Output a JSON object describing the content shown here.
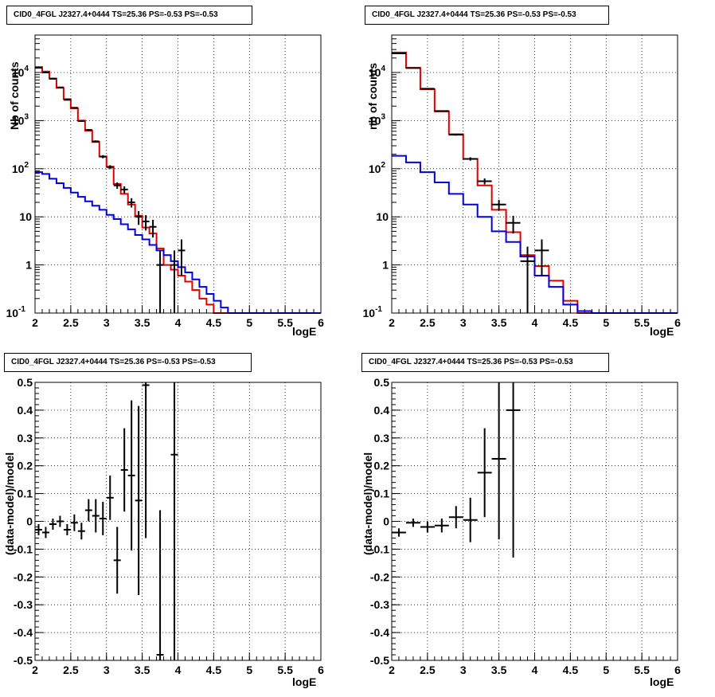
{
  "chart_data": [
    {
      "type": "line",
      "title": "CID0_4FGL J2327.4+0444 TS=25.36 PS=-0.53 PS=-0.53",
      "xlabel": "logE",
      "ylabel": "Nb of counts",
      "yscale": "log",
      "xlim": [
        2,
        6
      ],
      "ylim": [
        0.1,
        60000
      ],
      "grid": true,
      "x_ticks": [
        "2",
        "2.5",
        "3",
        "3.5",
        "4",
        "4.5",
        "5",
        "5.5",
        "6"
      ],
      "y_ticks": [
        "10^-1",
        "1",
        "10",
        "10^2",
        "10^3",
        "10^4"
      ],
      "bin_edges": [
        2.0,
        2.1,
        2.2,
        2.3,
        2.4,
        2.5,
        2.6,
        2.7,
        2.8,
        2.9,
        3.0,
        3.1,
        3.2,
        3.3,
        3.4,
        3.5,
        3.6,
        3.7,
        3.8,
        3.9,
        4.0,
        4.1,
        4.2,
        4.3,
        4.4,
        4.5,
        4.6,
        4.7,
        4.8,
        4.9,
        5.0,
        5.1,
        5.2,
        5.3,
        5.4,
        5.5,
        5.6,
        5.7,
        5.8,
        5.9,
        6.0
      ],
      "series": [
        {
          "color": "#e00000",
          "values": [
            13000,
            10500,
            7500,
            4800,
            2800,
            1800,
            1000,
            620,
            360,
            180,
            110,
            48,
            30,
            18,
            10.5,
            6,
            4.5,
            2.2,
            1,
            0.8,
            0.6,
            0.45,
            0.3,
            0.2,
            0.15,
            0.1,
            0.1,
            0.1,
            0.1,
            0.1,
            0.1,
            0.1,
            0.1,
            0.1,
            0.1,
            0.1,
            0.1,
            0.1,
            0.1,
            0.1
          ]
        },
        {
          "color": "#0000e0",
          "values": [
            85,
            78,
            62,
            50,
            40,
            32,
            26,
            21,
            17,
            14,
            11,
            9,
            7,
            5.5,
            4.2,
            3.4,
            2.6,
            2,
            1.6,
            1.2,
            0.9,
            0.7,
            0.5,
            0.35,
            0.25,
            0.18,
            0.13,
            0.1,
            0.1,
            0.1,
            0.1,
            0.1,
            0.1,
            0.1,
            0.1,
            0.1,
            0.1,
            0.1,
            0.1,
            0.1
          ]
        },
        {
          "color": "#000000",
          "type": "errorbar",
          "x": [
            2.05,
            2.15,
            2.25,
            2.35,
            2.45,
            2.55,
            2.65,
            2.75,
            2.85,
            2.95,
            3.05,
            3.15,
            3.25,
            3.35,
            3.45,
            3.55,
            3.65,
            3.75,
            3.95,
            4.05
          ],
          "y": [
            12500,
            10000,
            7400,
            4900,
            2700,
            1850,
            980,
            640,
            370,
            178,
            108,
            45,
            37,
            20,
            10,
            8,
            6.2,
            1,
            1,
            2
          ],
          "yerr_rel": [
            0.01,
            0.01,
            0.012,
            0.015,
            0.02,
            0.025,
            0.032,
            0.04,
            0.05,
            0.075,
            0.095,
            0.15,
            0.16,
            0.22,
            0.32,
            0.35,
            0.4,
            1,
            1,
            0.7
          ]
        }
      ]
    },
    {
      "type": "line",
      "title": "CID0_4FGL J2327.4+0444 TS=25.36 PS=-0.53 PS=-0.53",
      "xlabel": "logE",
      "ylabel": "nb of counts",
      "yscale": "log",
      "xlim": [
        2,
        6
      ],
      "ylim": [
        0.1,
        60000
      ],
      "grid": true,
      "x_ticks": [
        "2",
        "2.5",
        "3",
        "3.5",
        "4",
        "4.5",
        "5",
        "5.5",
        "6"
      ],
      "y_ticks": [
        "10^-1",
        "1",
        "10",
        "10^2",
        "10^3",
        "10^4"
      ],
      "bin_edges": [
        2.0,
        2.2,
        2.4,
        2.6,
        2.8,
        3.0,
        3.2,
        3.4,
        3.6,
        3.8,
        4.0,
        4.2,
        4.4,
        4.6,
        4.8,
        5.0,
        5.2,
        5.4,
        5.6,
        5.8,
        6.0
      ],
      "series": [
        {
          "color": "#e00000",
          "values": [
            26000,
            12500,
            4500,
            1550,
            520,
            160,
            45,
            14,
            4.8,
            1.6,
            0.95,
            0.47,
            0.18,
            0.1,
            0.1,
            0.1,
            0.1,
            0.1,
            0.1,
            0.1
          ]
        },
        {
          "color": "#0000e0",
          "values": [
            185,
            135,
            85,
            52,
            30,
            18,
            10,
            5,
            3,
            1.5,
            0.6,
            0.35,
            0.15,
            0.11,
            0.1,
            0.1,
            0.1,
            0.1,
            0.1,
            0.1
          ]
        },
        {
          "color": "#000000",
          "type": "errorbar",
          "x": [
            2.1,
            2.3,
            2.5,
            2.7,
            2.9,
            3.1,
            3.3,
            3.5,
            3.7,
            3.9,
            4.1
          ],
          "y": [
            25000,
            12400,
            4600,
            1580,
            510,
            160,
            55,
            18,
            7.5,
            1.2,
            2
          ],
          "yerr_rel": [
            0.006,
            0.009,
            0.015,
            0.025,
            0.045,
            0.08,
            0.14,
            0.25,
            0.4,
            1,
            0.7
          ]
        }
      ]
    },
    {
      "type": "scatter",
      "title": "CID0_4FGL J2327.4+0444 TS=25.36 PS=-0.53 PS=-0.53",
      "xlabel": "logE",
      "ylabel": "(data-model)/model",
      "xlim": [
        2,
        6
      ],
      "ylim": [
        -0.5,
        0.5
      ],
      "grid": true,
      "x_ticks": [
        "2",
        "2.5",
        "3",
        "3.5",
        "4",
        "4.5",
        "5",
        "5.5",
        "6"
      ],
      "y_ticks": [
        "-0.5",
        "-0.4",
        "-0.3",
        "-0.2",
        "-0.1",
        "0",
        "0.1",
        "0.2",
        "0.3",
        "0.4",
        "0.5"
      ],
      "series": [
        {
          "color": "#000000",
          "x": [
            2.05,
            2.15,
            2.25,
            2.35,
            2.45,
            2.55,
            2.65,
            2.75,
            2.85,
            2.95,
            3.05,
            3.15,
            3.25,
            3.35,
            3.45,
            3.55,
            3.75,
            3.95
          ],
          "y": [
            -0.03,
            -0.04,
            -0.01,
            0.0,
            -0.03,
            -0.005,
            -0.035,
            0.04,
            0.02,
            0.01,
            0.085,
            -0.14,
            0.185,
            0.165,
            0.075,
            0.49,
            -0.48,
            0.24
          ],
          "yerr": [
            0.02,
            0.02,
            0.02,
            0.02,
            0.02,
            0.03,
            0.03,
            0.04,
            0.06,
            0.06,
            0.08,
            0.12,
            0.15,
            0.27,
            0.34,
            0.55,
            0.52,
            0.8
          ]
        }
      ]
    },
    {
      "type": "scatter",
      "title": "CID0_4FGL J2327.4+0444 TS=25.36 PS=-0.53 PS=-0.53",
      "xlabel": "logE",
      "ylabel": "(data-model)/model",
      "xlim": [
        2,
        6
      ],
      "ylim": [
        -0.5,
        0.5
      ],
      "grid": true,
      "x_ticks": [
        "2",
        "2.5",
        "3",
        "3.5",
        "4",
        "4.5",
        "5",
        "5.5",
        "6"
      ],
      "y_ticks": [
        "-0.5",
        "-0.4",
        "-0.3",
        "-0.2",
        "-0.1",
        "0",
        "0.1",
        "0.2",
        "0.3",
        "0.4",
        "0.5"
      ],
      "series": [
        {
          "color": "#000000",
          "x": [
            2.1,
            2.3,
            2.5,
            2.7,
            2.9,
            3.1,
            3.3,
            3.5,
            3.7
          ],
          "y": [
            -0.04,
            -0.005,
            -0.02,
            -0.015,
            0.015,
            0.005,
            0.175,
            0.225,
            0.4
          ],
          "yerr": [
            0.015,
            0.015,
            0.02,
            0.025,
            0.04,
            0.08,
            0.16,
            0.29,
            0.53
          ]
        }
      ]
    }
  ]
}
